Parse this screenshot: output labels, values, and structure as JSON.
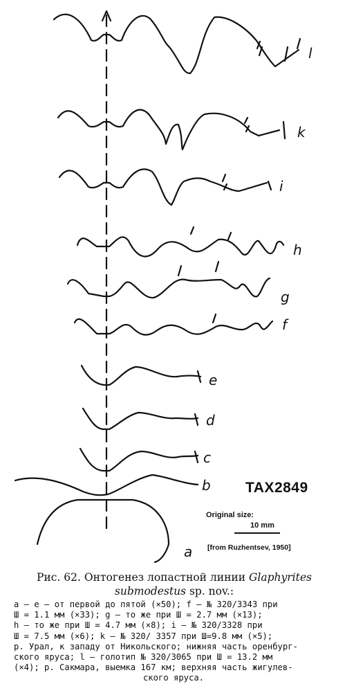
{
  "figure": {
    "stage_labels": [
      "l",
      "k",
      "i",
      "h",
      "g",
      "f",
      "e",
      "d",
      "c",
      "b",
      "a"
    ],
    "code": "TAX2849",
    "original_size_label": "Original size:",
    "scale_label": "10 mm",
    "source_label": "[from Ruzhentsev, 1950]"
  },
  "caption": {
    "title_prefix": "Рис. 62. Онтогенез лопастной линии",
    "genus": "Glaphyrites",
    "species": "submodestus",
    "title_suffix": "sp. nov.:"
  },
  "legend_lines": [
    "a — e — от первой до пятой (×50); f — № 320/3343 при",
    "Ш = 1.1 мм (×33); g — то же при Ш = 2.7 мм (×13);",
    "h — то же при Ш = 4.7 мм (×8); i — № 320/3328 при",
    "Ш = 7.5 мм (×6); k — № 320/ 3357 при Ш=9.8 мм (×5);",
    "р. Урал, к западу от Никольского; нижняя часть оренбург-",
    "ского яруса; l — голотип № 320/3065 при Ш = 13.2 мм",
    "(×4); р. Сакмара, выемка 167 км; верхняя часть жигулев-",
    "ского яруса."
  ]
}
